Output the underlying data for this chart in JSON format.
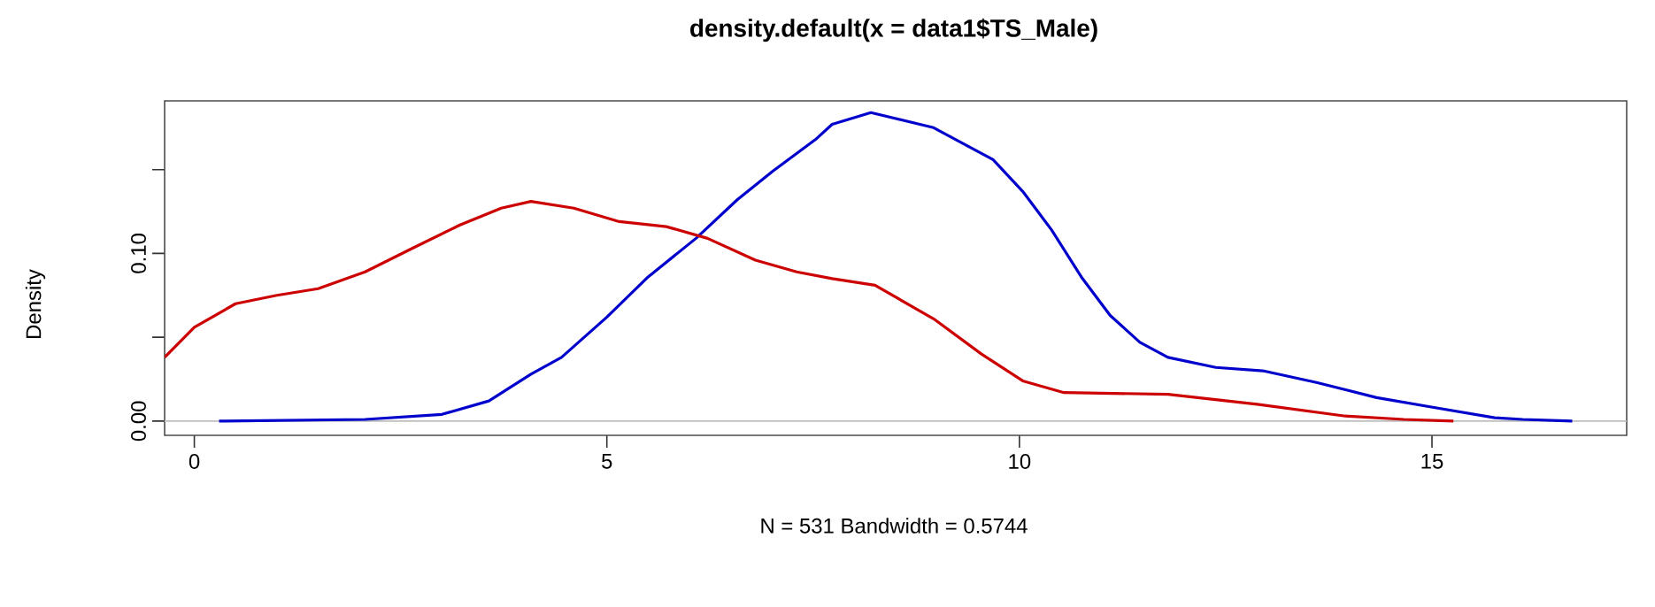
{
  "chart_data": {
    "type": "line",
    "title": "density.default(x = data1$TS_Male)",
    "xlabel": "N = 531   Bandwidth = 0.5744",
    "ylabel": "Density",
    "xlim": [
      -0.36,
      17.36
    ],
    "ylim": [
      -0.0085,
      0.191
    ],
    "xticks": [
      0,
      5,
      10,
      15
    ],
    "yticks": [
      {
        "value": 0,
        "label": "0.00"
      },
      {
        "value": 0.05,
        "label": null
      },
      {
        "value": 0.1,
        "label": "0.10"
      },
      {
        "value": 0.15,
        "label": null
      }
    ],
    "ref_lines": [
      {
        "axis": "y",
        "value": 0,
        "color": "#bebebe"
      }
    ],
    "series": [
      {
        "color": "#0000cc",
        "x": [
          0.3,
          2.07,
          3.0,
          3.57,
          4.08,
          4.45,
          5.0,
          5.5,
          6.08,
          6.58,
          7.01,
          7.53,
          7.73,
          8.2,
          8.96,
          9.68,
          10.04,
          10.39,
          10.75,
          11.1,
          11.46,
          11.8,
          12.38,
          12.95,
          13.6,
          14.33,
          15.04,
          15.76,
          16.1,
          16.7
        ],
        "values": [
          0.0,
          0.001,
          0.004,
          0.012,
          0.028,
          0.038,
          0.062,
          0.086,
          0.109,
          0.132,
          0.149,
          0.168,
          0.177,
          0.184,
          0.175,
          0.156,
          0.137,
          0.114,
          0.086,
          0.063,
          0.047,
          0.038,
          0.032,
          0.03,
          0.023,
          0.014,
          0.008,
          0.002,
          0.001,
          0.0
        ]
      },
      {
        "color": "#cc0000",
        "x": [
          -0.36,
          0,
          0.5,
          1.0,
          1.5,
          2.07,
          2.64,
          3.22,
          3.72,
          4.08,
          4.6,
          5.15,
          5.72,
          6.22,
          6.8,
          7.3,
          7.73,
          8.25,
          8.96,
          9.54,
          10.04,
          10.54,
          11.8,
          12.88,
          13.95,
          14.66,
          15.26
        ],
        "values": [
          0.038,
          0.056,
          0.07,
          0.075,
          0.079,
          0.089,
          0.103,
          0.117,
          0.127,
          0.131,
          0.127,
          0.119,
          0.116,
          0.109,
          0.096,
          0.089,
          0.085,
          0.081,
          0.061,
          0.04,
          0.024,
          0.017,
          0.016,
          0.01,
          0.003,
          0.001,
          0.0
        ]
      }
    ]
  }
}
